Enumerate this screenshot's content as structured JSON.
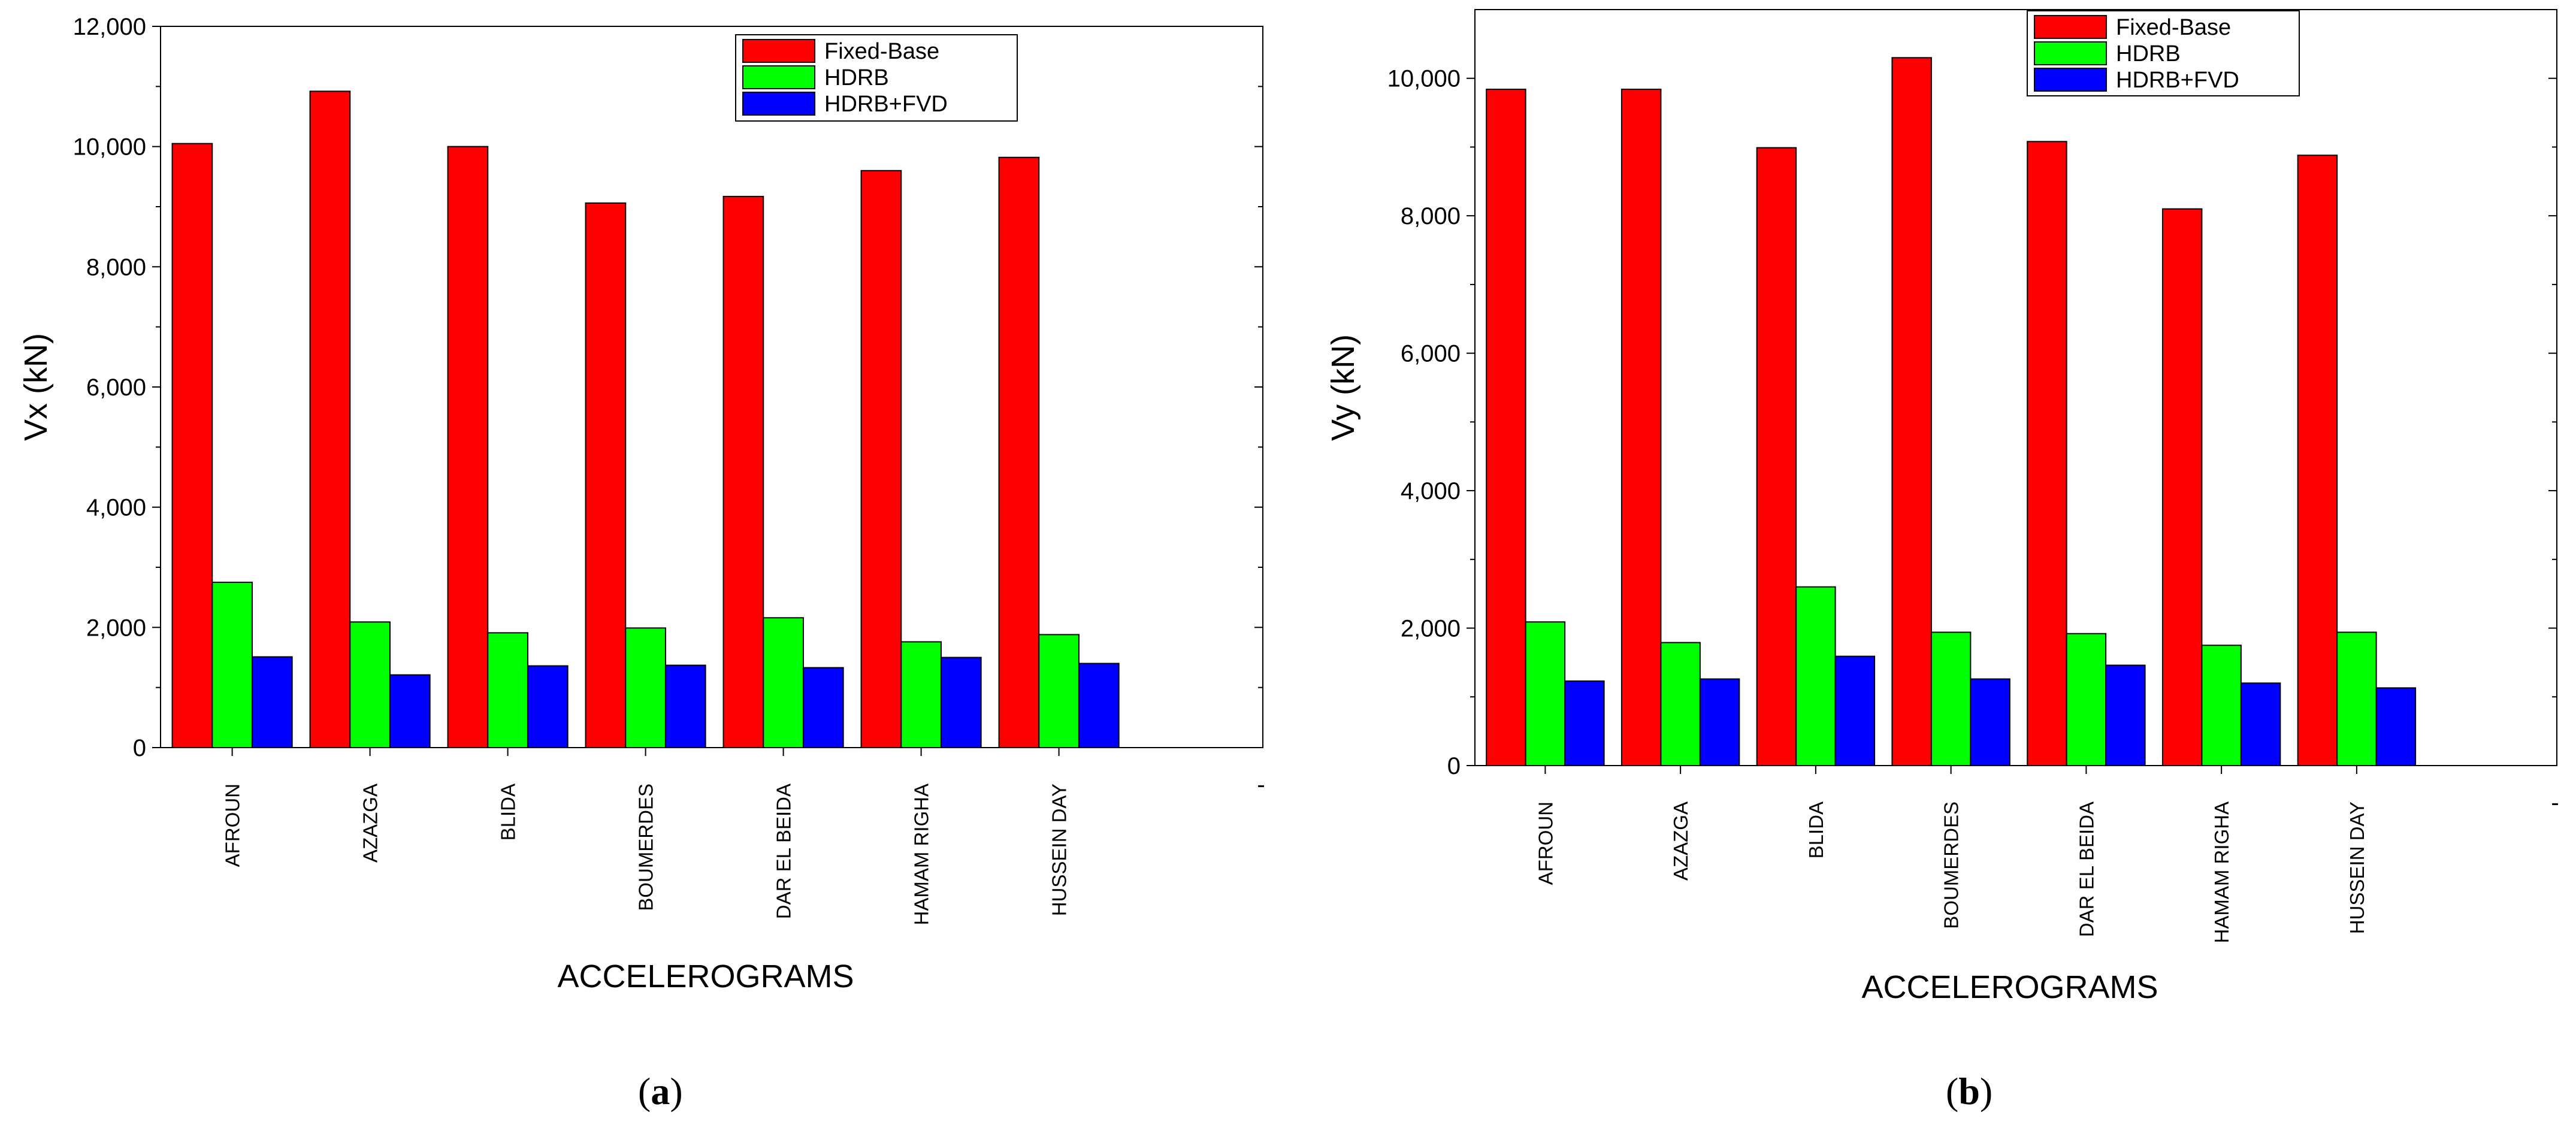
{
  "chart_data": [
    {
      "type": "bar",
      "panel_label": "a",
      "categories": [
        "AFROUN",
        "AZAZGA",
        "BLIDA",
        "BOUMERDES",
        "DAR EL BEIDA",
        "HAMAM RIGHA",
        "HUSSEIN DAY"
      ],
      "series": [
        {
          "name": "Fixed-Base",
          "color": "#ff0000",
          "values": [
            10050,
            10920,
            10000,
            9060,
            9170,
            9600,
            9820
          ]
        },
        {
          "name": "HDRB",
          "color": "#00ff00",
          "values": [
            2750,
            2090,
            1910,
            1990,
            2160,
            1760,
            1880
          ]
        },
        {
          "name": "HDRB+FVD",
          "color": "#0000ff",
          "values": [
            1510,
            1210,
            1360,
            1370,
            1330,
            1500,
            1400
          ]
        }
      ],
      "xlabel": "ACCELEROGRAMS",
      "ylabel": "Vx (kN)",
      "ylim": [
        0,
        12000
      ],
      "yticks": [
        "0",
        "2,000",
        "4,000",
        "6,000",
        "8,000",
        "10,000",
        "12,000"
      ],
      "extra_tick_label": "-"
    },
    {
      "type": "bar",
      "panel_label": "b",
      "categories": [
        "AFROUN",
        "AZAZGA",
        "BLIDA",
        "BOUMERDES",
        "DAR EL BEIDA",
        "HAMAM RIGHA",
        "HUSSEIN DAY"
      ],
      "series": [
        {
          "name": "Fixed-Base",
          "color": "#ff0000",
          "values": [
            9840,
            9840,
            8990,
            10300,
            9080,
            8100,
            8880
          ]
        },
        {
          "name": "HDRB",
          "color": "#00ff00",
          "values": [
            2090,
            1790,
            2600,
            1940,
            1920,
            1750,
            1940
          ]
        },
        {
          "name": "HDRB+FVD",
          "color": "#0000ff",
          "values": [
            1230,
            1260,
            1590,
            1260,
            1460,
            1200,
            1130
          ]
        }
      ],
      "xlabel": "ACCELEROGRAMS",
      "ylabel": "Vy (kN)",
      "ylim": [
        0,
        11000
      ],
      "yticks": [
        "0",
        "2,000",
        "4,000",
        "6,000",
        "8,000",
        "10,000"
      ],
      "extra_tick_label": "-"
    }
  ]
}
